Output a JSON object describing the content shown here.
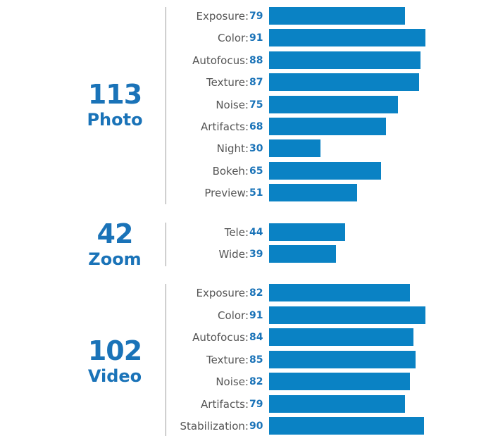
{
  "chart_data": {
    "type": "bar",
    "orientation": "horizontal",
    "colors": {
      "bar": "#0a82c4",
      "text_accent": "#1a73b8",
      "label": "#555555",
      "divider": "#9a9a9a"
    },
    "groups": [
      {
        "score": "113",
        "name": "Photo",
        "categories": [
          "Exposure:",
          "Color:",
          "Autofocus:",
          "Texture:",
          "Noise:",
          "Artifacts:",
          "Night:",
          "Bokeh:",
          "Preview:"
        ],
        "values": [
          79,
          91,
          88,
          87,
          75,
          68,
          30,
          65,
          51
        ]
      },
      {
        "score": "42",
        "name": "Zoom",
        "categories": [
          "Tele:",
          "Wide:"
        ],
        "values": [
          44,
          39
        ]
      },
      {
        "score": "102",
        "name": "Video",
        "categories": [
          "Exposure:",
          "Color:",
          "Autofocus:",
          "Texture:",
          "Noise:",
          "Artifacts:",
          "Stabilization:"
        ],
        "values": [
          82,
          91,
          84,
          85,
          82,
          79,
          90
        ]
      }
    ]
  }
}
